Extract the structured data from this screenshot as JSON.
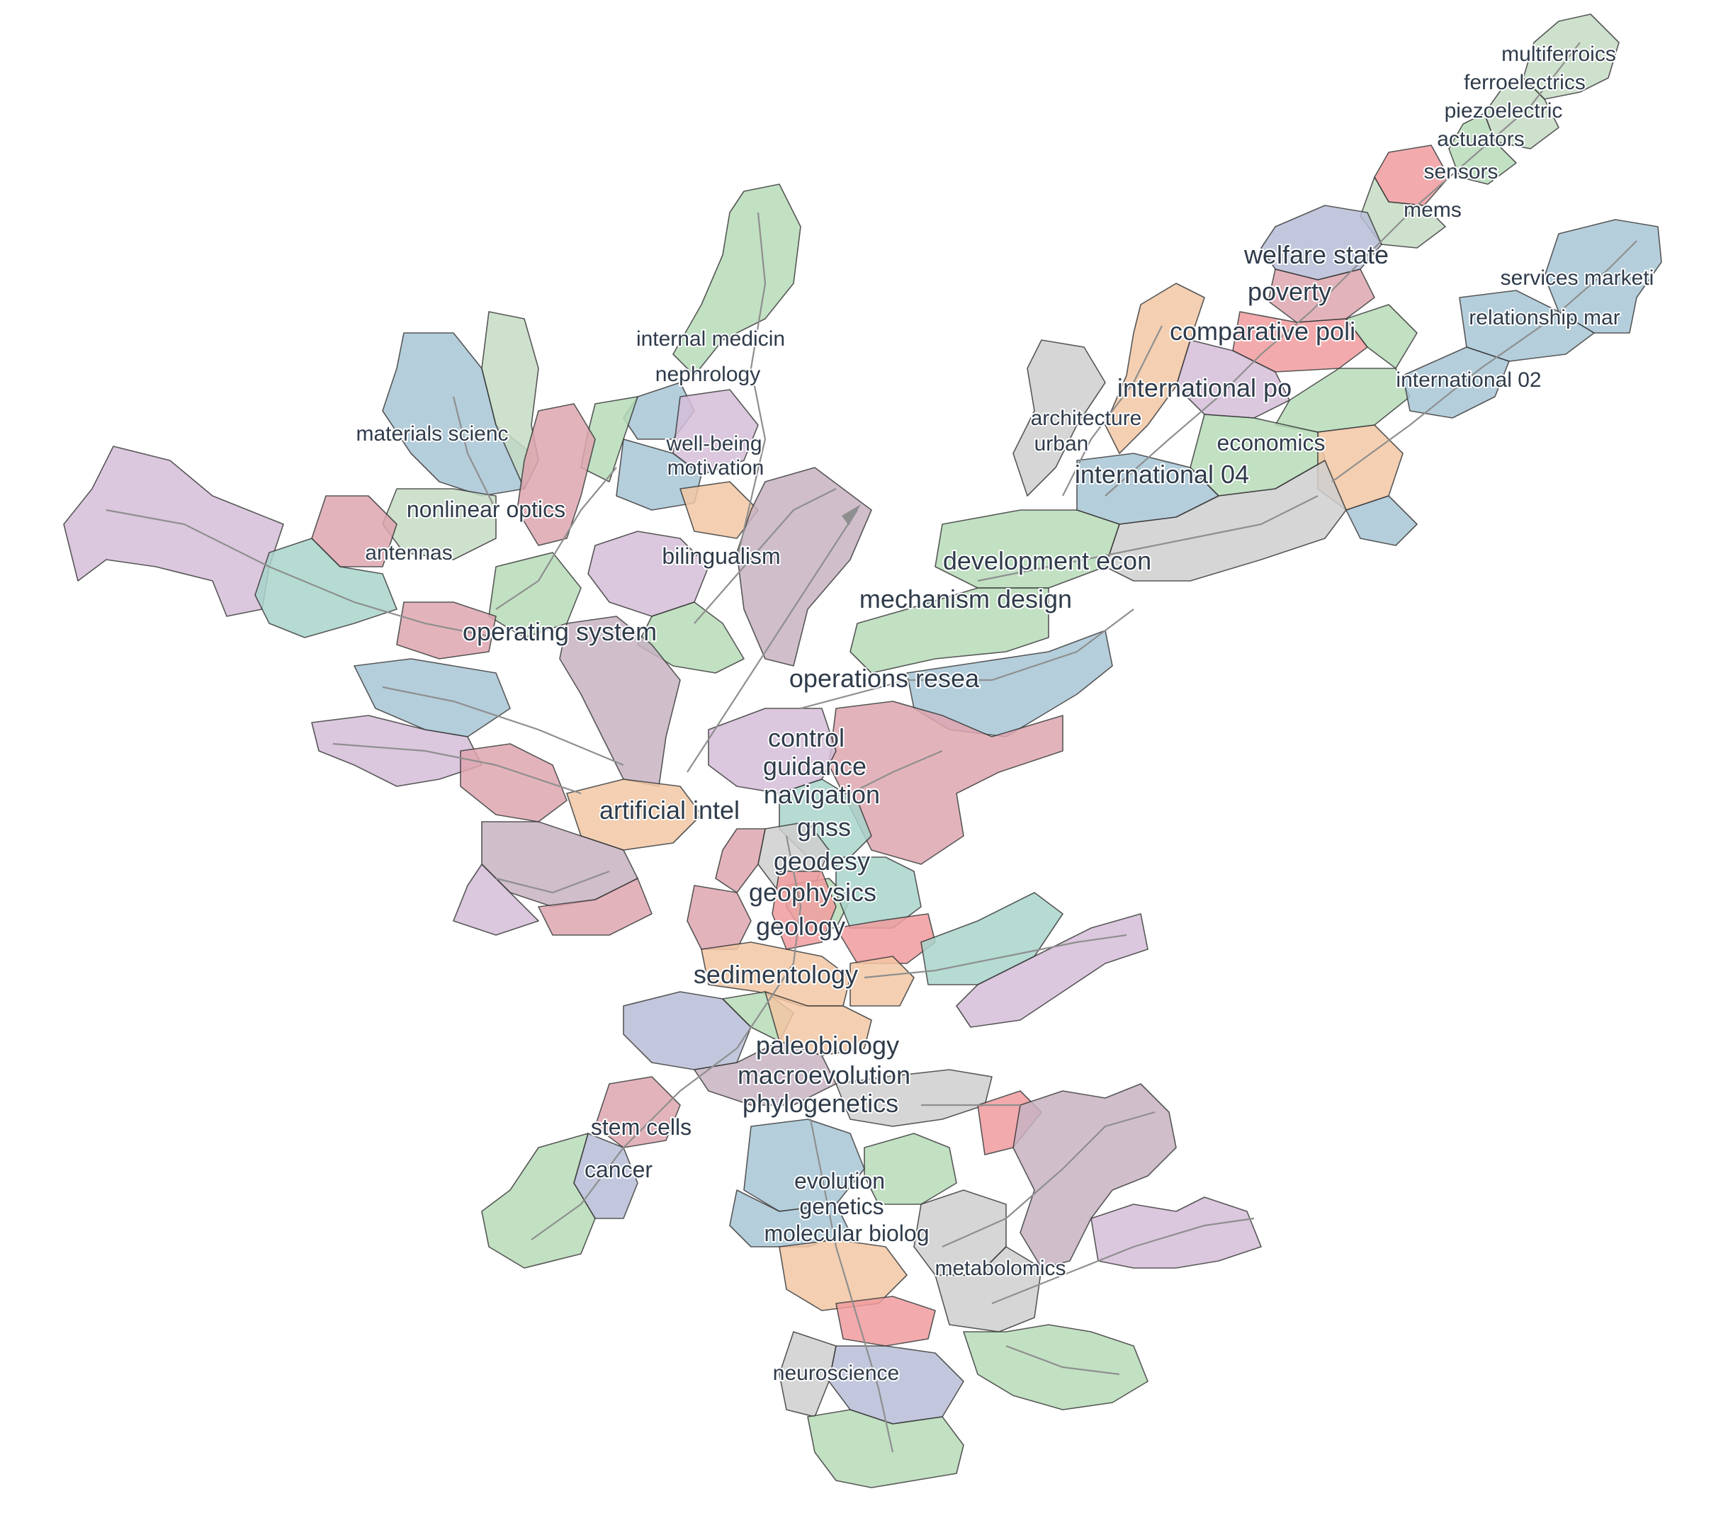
{
  "map": {
    "type": "topic-map",
    "palette": {
      "green": "#b7dcb8",
      "blue": "#a7c6d6",
      "purple": "#d5bed9",
      "pink": "#dfa6b0",
      "red": "#f29c9e",
      "peach": "#f3c7a4",
      "gray": "#cfcfcf",
      "mauve": "#c8b3c3",
      "slate": "#b8bed8",
      "teal": "#a9d5cc",
      "sage": "#c6dcc5",
      "edge": "#8f8f8f",
      "border": "#3a3a3a",
      "label": "#2f3b4a"
    },
    "labels": [
      "multiferroics",
      "ferroelectrics",
      "piezoelectric",
      "actuators",
      "sensors",
      "mems",
      "welfare state",
      "poverty",
      "comparative poli",
      "services marketi",
      "relationship mar",
      "international 02",
      "international po",
      "architecture",
      "urban",
      "economics",
      "international 04",
      "development econ",
      "mechanism design",
      "operations resea",
      "internal medicin",
      "nephrology",
      "well-being",
      "motivation",
      "materials scienc",
      "nonlinear optics",
      "antennas",
      "bilingualism",
      "operating system",
      "control",
      "guidance",
      "navigation",
      "gnss",
      "artificial intel",
      "geodesy",
      "geophysics",
      "geology",
      "sedimentology",
      "paleobiology",
      "macroevolution",
      "phylogenetics",
      "stem cells",
      "cancer",
      "evolution",
      "genetics",
      "molecular biolog",
      "metabolomics",
      "neuroscience"
    ]
  }
}
